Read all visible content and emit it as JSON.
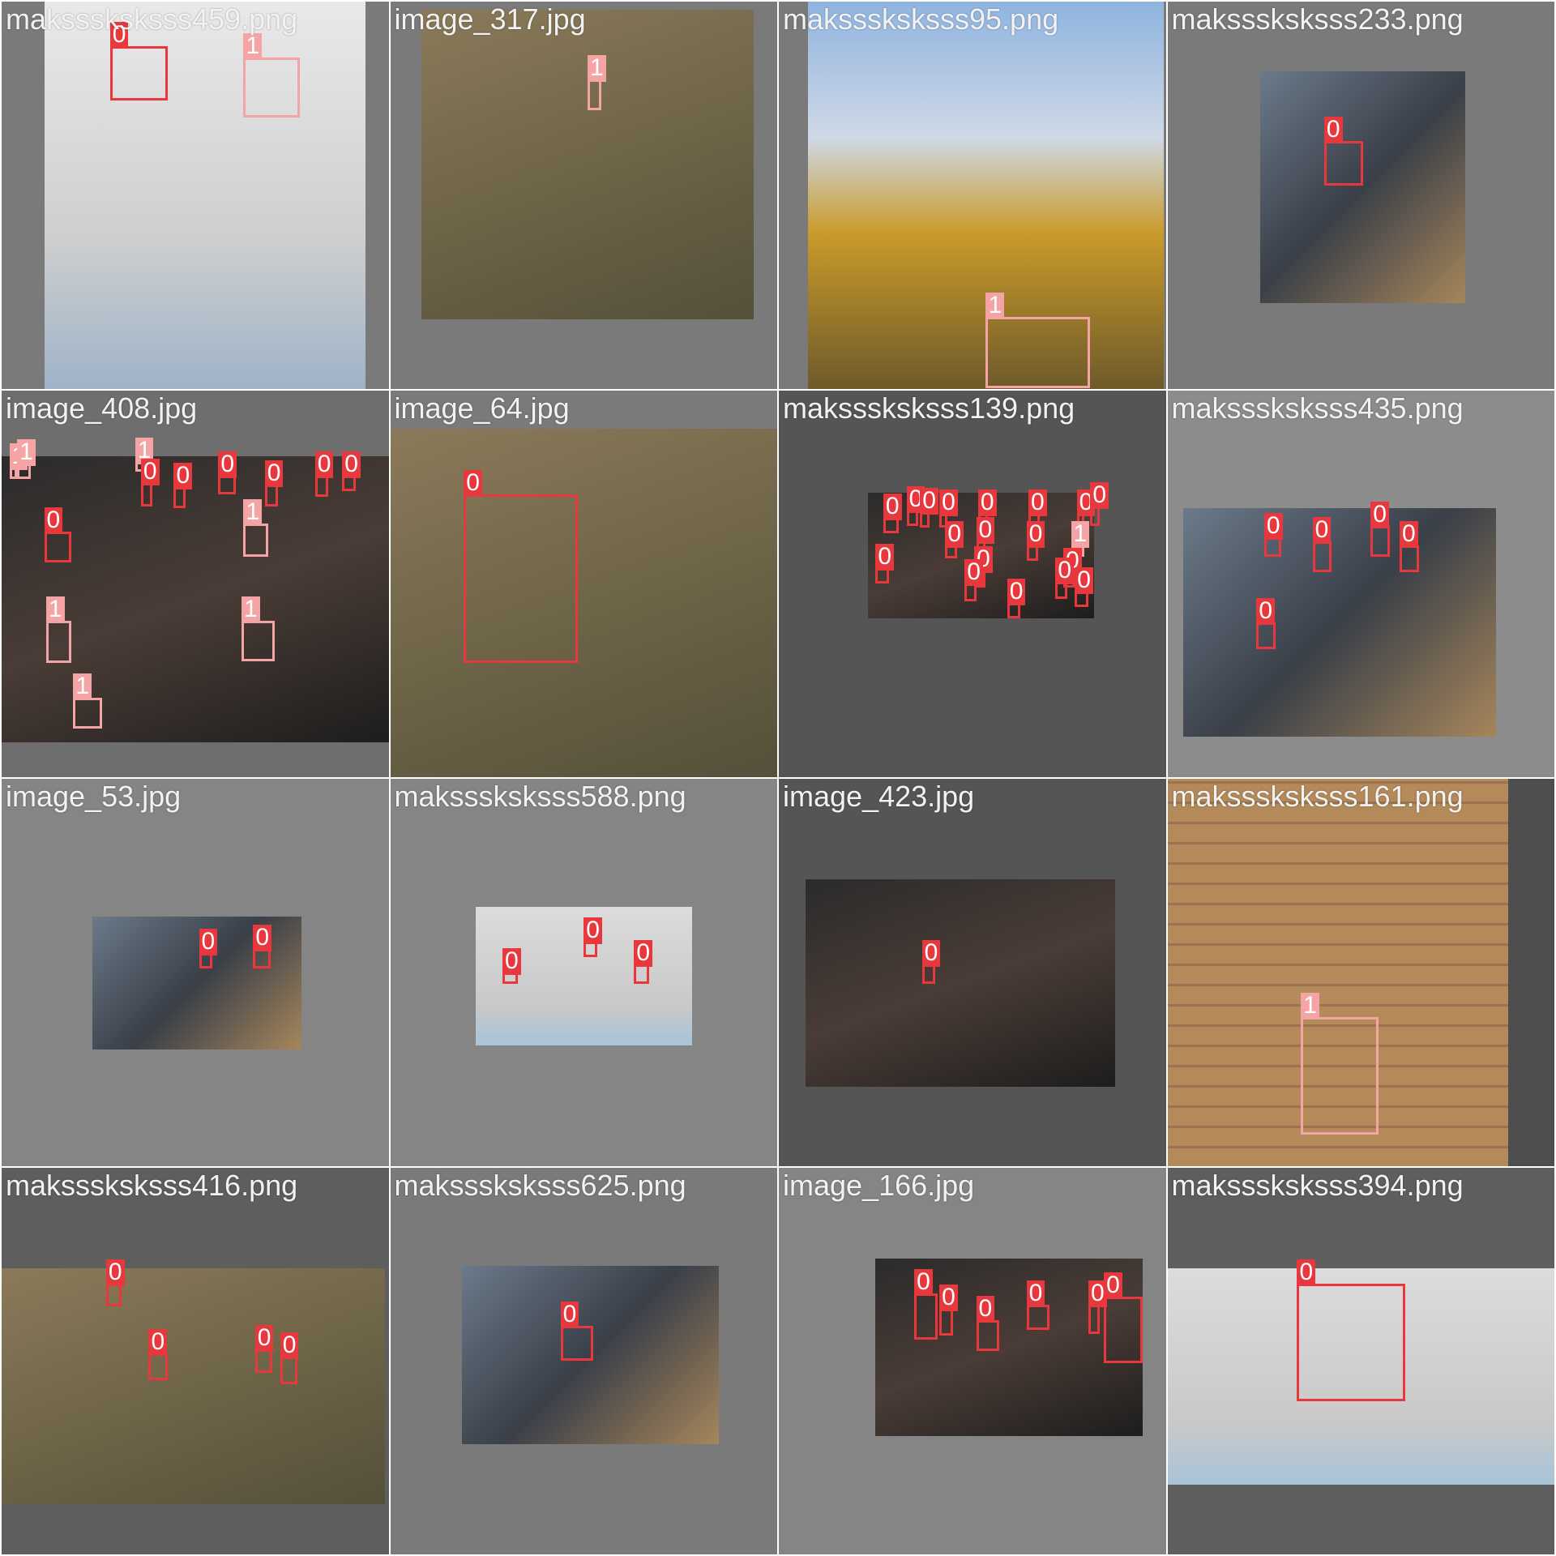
{
  "colors": {
    "class_0": "#e8383d",
    "class_1": "#f4a4a4"
  },
  "tiles": [
    {
      "caption": "maksssksksss459.png",
      "bg": "#7a7a7a",
      "photo_class": "light",
      "photo": [
        0.11,
        0.0,
        0.94,
        1.0
      ],
      "boxes": [
        {
          "c": "0",
          "b": [
            0.28,
            0.115,
            0.43,
            0.255
          ]
        },
        {
          "c": "1",
          "b": [
            0.625,
            0.145,
            0.77,
            0.3
          ]
        }
      ]
    },
    {
      "caption": "image_317.jpg",
      "bg": "#7a7a7a",
      "photo_class": "warm",
      "photo": [
        0.08,
        0.02,
        0.94,
        0.82
      ],
      "boxes": [
        {
          "c": "1",
          "b": [
            0.51,
            0.2,
            0.545,
            0.28
          ]
        }
      ]
    },
    {
      "caption": "maksssksksss95.png",
      "bg": "#7a7a7a",
      "photo_class": "sky",
      "photo": [
        0.075,
        0.0,
        0.995,
        1.0
      ],
      "boxes": [
        {
          "c": "1",
          "b": [
            0.535,
            0.815,
            0.805,
            1.0
          ]
        }
      ]
    },
    {
      "caption": "maksssksksss233.png",
      "bg": "#7a7a7a",
      "photo_class": "street",
      "photo": [
        0.24,
        0.18,
        0.77,
        0.78
      ],
      "boxes": [
        {
          "c": "0",
          "b": [
            0.405,
            0.36,
            0.505,
            0.475
          ]
        }
      ]
    },
    {
      "caption": "image_408.jpg",
      "bg": "#6e6e6e",
      "photo_class": "dark",
      "photo": [
        0.0,
        0.17,
        1.0,
        0.91
      ],
      "boxes": [
        {
          "c": "1",
          "b": [
            0.02,
            0.2,
            0.04,
            0.23
          ]
        },
        {
          "c": "1",
          "b": [
            0.04,
            0.19,
            0.075,
            0.23
          ]
        },
        {
          "c": "1",
          "b": [
            0.345,
            0.185,
            0.39,
            0.21
          ]
        },
        {
          "c": "0",
          "b": [
            0.36,
            0.24,
            0.39,
            0.3
          ]
        },
        {
          "c": "0",
          "b": [
            0.445,
            0.25,
            0.475,
            0.305
          ]
        },
        {
          "c": "0",
          "b": [
            0.56,
            0.22,
            0.605,
            0.27
          ]
        },
        {
          "c": "0",
          "b": [
            0.68,
            0.245,
            0.715,
            0.3
          ]
        },
        {
          "c": "0",
          "b": [
            0.81,
            0.22,
            0.845,
            0.275
          ]
        },
        {
          "c": "0",
          "b": [
            0.88,
            0.22,
            0.915,
            0.26
          ]
        },
        {
          "c": "0",
          "b": [
            0.11,
            0.365,
            0.18,
            0.445
          ]
        },
        {
          "c": "1",
          "b": [
            0.625,
            0.345,
            0.69,
            0.43
          ]
        },
        {
          "c": "1",
          "b": [
            0.115,
            0.595,
            0.18,
            0.705
          ]
        },
        {
          "c": "1",
          "b": [
            0.62,
            0.595,
            0.705,
            0.7
          ]
        },
        {
          "c": "1",
          "b": [
            0.185,
            0.795,
            0.26,
            0.875
          ]
        }
      ]
    },
    {
      "caption": "image_64.jpg",
      "bg": "#7a7a7a",
      "photo_class": "warm",
      "photo": [
        0.0,
        0.1,
        1.0,
        1.0
      ],
      "boxes": [
        {
          "c": "0",
          "b": [
            0.19,
            0.27,
            0.485,
            0.705
          ]
        }
      ]
    },
    {
      "caption": "maksssksksss139.png",
      "bg": "#555555",
      "photo_class": "dark",
      "photo": [
        0.23,
        0.265,
        0.815,
        0.59
      ],
      "boxes": [
        {
          "c": "0",
          "b": [
            0.27,
            0.33,
            0.31,
            0.37
          ]
        },
        {
          "c": "0",
          "b": [
            0.33,
            0.31,
            0.36,
            0.35
          ]
        },
        {
          "c": "0",
          "b": [
            0.365,
            0.315,
            0.39,
            0.355
          ]
        },
        {
          "c": "0",
          "b": [
            0.415,
            0.32,
            0.435,
            0.355
          ]
        },
        {
          "c": "0",
          "b": [
            0.515,
            0.32,
            0.54,
            0.36
          ]
        },
        {
          "c": "0",
          "b": [
            0.645,
            0.32,
            0.675,
            0.36
          ]
        },
        {
          "c": "0",
          "b": [
            0.77,
            0.32,
            0.79,
            0.36
          ]
        },
        {
          "c": "0",
          "b": [
            0.805,
            0.3,
            0.83,
            0.35
          ]
        },
        {
          "c": "0",
          "b": [
            0.43,
            0.4,
            0.46,
            0.435
          ]
        },
        {
          "c": "0",
          "b": [
            0.51,
            0.39,
            0.535,
            0.43
          ]
        },
        {
          "c": "0",
          "b": [
            0.64,
            0.4,
            0.67,
            0.44
          ]
        },
        {
          "c": "1",
          "b": [
            0.755,
            0.4,
            0.79,
            0.43
          ]
        },
        {
          "c": "0",
          "b": [
            0.25,
            0.46,
            0.285,
            0.5
          ]
        },
        {
          "c": "0",
          "b": [
            0.505,
            0.465,
            0.535,
            0.51
          ]
        },
        {
          "c": "0",
          "b": [
            0.48,
            0.5,
            0.51,
            0.545
          ]
        },
        {
          "c": "0",
          "b": [
            0.735,
            0.47,
            0.765,
            0.51
          ]
        },
        {
          "c": "0",
          "b": [
            0.715,
            0.495,
            0.745,
            0.54
          ]
        },
        {
          "c": "0",
          "b": [
            0.765,
            0.52,
            0.8,
            0.56
          ]
        },
        {
          "c": "0",
          "b": [
            0.59,
            0.55,
            0.625,
            0.59
          ]
        }
      ]
    },
    {
      "caption": "maksssksksss435.png",
      "bg": "#8c8c8c",
      "photo_class": "street",
      "photo": [
        0.04,
        0.305,
        0.85,
        0.895
      ],
      "boxes": [
        {
          "c": "0",
          "b": [
            0.25,
            0.38,
            0.295,
            0.43
          ]
        },
        {
          "c": "0",
          "b": [
            0.375,
            0.39,
            0.425,
            0.47
          ]
        },
        {
          "c": "0",
          "b": [
            0.525,
            0.35,
            0.575,
            0.43
          ]
        },
        {
          "c": "0",
          "b": [
            0.6,
            0.4,
            0.65,
            0.47
          ]
        },
        {
          "c": "0",
          "b": [
            0.23,
            0.6,
            0.28,
            0.67
          ]
        }
      ]
    },
    {
      "caption": "image_53.jpg",
      "bg": "#858585",
      "photo_class": "street",
      "photo": [
        0.235,
        0.355,
        0.775,
        0.7
      ],
      "boxes": [
        {
          "c": "0",
          "b": [
            0.51,
            0.45,
            0.545,
            0.49
          ]
        },
        {
          "c": "0",
          "b": [
            0.65,
            0.44,
            0.695,
            0.49
          ]
        }
      ]
    },
    {
      "caption": "maksssksksss588.png",
      "bg": "#858585",
      "photo_class": "pale",
      "photo": [
        0.22,
        0.33,
        0.78,
        0.69
      ],
      "boxes": [
        {
          "c": "0",
          "b": [
            0.29,
            0.5,
            0.33,
            0.53
          ]
        },
        {
          "c": "0",
          "b": [
            0.5,
            0.42,
            0.535,
            0.46
          ]
        },
        {
          "c": "0",
          "b": [
            0.63,
            0.48,
            0.67,
            0.53
          ]
        }
      ]
    },
    {
      "caption": "image_423.jpg",
      "bg": "#555555",
      "photo_class": "dark",
      "photo": [
        0.07,
        0.26,
        0.87,
        0.795
      ],
      "boxes": [
        {
          "c": "0",
          "b": [
            0.37,
            0.48,
            0.405,
            0.53
          ]
        }
      ]
    },
    {
      "caption": "maksssksksss161.png",
      "bg": "#4e4e4e",
      "photo_class": "brick",
      "photo": [
        0.0,
        0.0,
        0.88,
        1.0
      ],
      "boxes": [
        {
          "c": "1",
          "b": [
            0.345,
            0.615,
            0.545,
            0.92
          ]
        }
      ]
    },
    {
      "caption": "maksssksksss416.png",
      "bg": "#5e5e5e",
      "photo_class": "warm",
      "photo": [
        0.0,
        0.26,
        0.99,
        0.87
      ],
      "boxes": [
        {
          "c": "0",
          "b": [
            0.27,
            0.3,
            0.31,
            0.36
          ]
        },
        {
          "c": "0",
          "b": [
            0.38,
            0.48,
            0.43,
            0.55
          ]
        },
        {
          "c": "0",
          "b": [
            0.655,
            0.47,
            0.7,
            0.53
          ]
        },
        {
          "c": "0",
          "b": [
            0.72,
            0.49,
            0.765,
            0.56
          ]
        }
      ]
    },
    {
      "caption": "maksssksksss625.png",
      "bg": "#7a7a7a",
      "photo_class": "street",
      "photo": [
        0.185,
        0.255,
        0.85,
        0.715
      ],
      "boxes": [
        {
          "c": "0",
          "b": [
            0.44,
            0.41,
            0.525,
            0.5
          ]
        }
      ]
    },
    {
      "caption": "image_166.jpg",
      "bg": "#858585",
      "photo_class": "dark",
      "photo": [
        0.25,
        0.235,
        0.94,
        0.695
      ],
      "boxes": [
        {
          "c": "0",
          "b": [
            0.35,
            0.325,
            0.41,
            0.445
          ]
        },
        {
          "c": "0",
          "b": [
            0.415,
            0.365,
            0.45,
            0.435
          ]
        },
        {
          "c": "0",
          "b": [
            0.51,
            0.395,
            0.57,
            0.475
          ]
        },
        {
          "c": "0",
          "b": [
            0.64,
            0.355,
            0.7,
            0.42
          ]
        },
        {
          "c": "0",
          "b": [
            0.8,
            0.355,
            0.83,
            0.43
          ]
        },
        {
          "c": "0",
          "b": [
            0.84,
            0.335,
            0.94,
            0.505
          ]
        }
      ]
    },
    {
      "caption": "maksssksksss394.png",
      "bg": "#5e5e5e",
      "photo_class": "pale",
      "photo": [
        0.0,
        0.26,
        1.0,
        0.82
      ],
      "boxes": [
        {
          "c": "0",
          "b": [
            0.335,
            0.3,
            0.615,
            0.605
          ]
        }
      ]
    }
  ]
}
